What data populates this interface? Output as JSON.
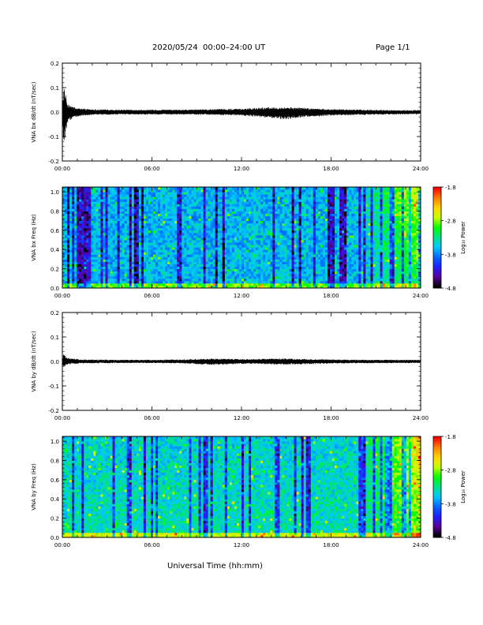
{
  "header": {
    "title": "2020/05/24  00:00–24:00 UT",
    "page": "Page 1/1"
  },
  "x_axis_title": "Universal Time (hh:mm)",
  "colorbar": {
    "label": "Log₁₀ Power",
    "ticks": [
      "-1.8",
      "-2.8",
      "-3.8",
      "-4.8"
    ],
    "range": [
      -4.8,
      -1.8
    ],
    "colormap": [
      "#000000",
      "#5a009c",
      "#1f20ff",
      "#0066ff",
      "#00c8ff",
      "#00e08a",
      "#00ff00",
      "#c8ff00",
      "#ffd700",
      "#ff8000",
      "#ff0000"
    ]
  },
  "chart_data": [
    {
      "type": "line",
      "name": "VNA bx waveform",
      "ylabel": "VNA bx dB/dt (nT/sec)",
      "ylim": [
        -0.2,
        0.2
      ],
      "yticks": [
        "0.2",
        "0.1",
        "0.0",
        "-0.1",
        "-0.2"
      ],
      "xticks": [
        "00:00",
        "06:00",
        "12:00",
        "18:00",
        "24:00"
      ],
      "xlim_hours": [
        0,
        24
      ],
      "envelope": {
        "x_hours": [
          0,
          0.1,
          0.2,
          0.3,
          0.4,
          0.6,
          0.8,
          1.0,
          1.3,
          2,
          4,
          6,
          8,
          10,
          12,
          13,
          14,
          15,
          16,
          18,
          20,
          22,
          24
        ],
        "y_min": [
          -0.02,
          -0.15,
          -0.09,
          -0.06,
          -0.04,
          -0.03,
          -0.02,
          -0.02,
          -0.015,
          -0.012,
          -0.01,
          -0.01,
          -0.01,
          -0.012,
          -0.014,
          -0.02,
          -0.025,
          -0.03,
          -0.022,
          -0.015,
          -0.012,
          -0.01,
          -0.01
        ],
        "y_max": [
          0.02,
          0.11,
          0.08,
          0.04,
          0.03,
          0.025,
          0.02,
          0.015,
          0.015,
          0.012,
          0.01,
          0.01,
          0.01,
          0.012,
          0.014,
          0.018,
          0.02,
          0.02,
          0.018,
          0.012,
          0.01,
          0.008,
          0.008
        ]
      }
    },
    {
      "type": "heatmap",
      "name": "VNA bx spectrogram",
      "ylabel": "VNA bx Freq (Hz)",
      "ylim": [
        0,
        1.05
      ],
      "yticks": [
        "1.0",
        "0.8",
        "0.6",
        "0.4",
        "0.2",
        "0.0"
      ],
      "xticks": [
        "00:00",
        "06:00",
        "12:00",
        "18:00",
        "24:00"
      ],
      "xlim_hours": [
        0,
        24
      ]
    },
    {
      "type": "line",
      "name": "VNA by waveform",
      "ylabel": "VNA by dB/dt (nT/sec)",
      "ylim": [
        -0.2,
        0.2
      ],
      "yticks": [
        "0.2",
        "0.1",
        "0.0",
        "-0.1",
        "-0.2"
      ],
      "xticks": [
        "00:00",
        "06:00",
        "12:00",
        "18:00",
        "24:00"
      ],
      "xlim_hours": [
        0,
        24
      ],
      "envelope": {
        "x_hours": [
          0,
          0.1,
          0.2,
          0.3,
          0.4,
          0.6,
          0.8,
          1.0,
          1.3,
          2,
          4,
          6,
          8,
          10,
          12,
          13,
          14,
          15,
          16,
          18,
          20,
          22,
          24
        ],
        "y_min": [
          -0.01,
          -0.03,
          -0.02,
          -0.015,
          -0.012,
          -0.01,
          -0.01,
          -0.01,
          -0.008,
          -0.008,
          -0.007,
          -0.007,
          -0.008,
          -0.015,
          -0.01,
          -0.01,
          -0.012,
          -0.014,
          -0.012,
          -0.009,
          -0.008,
          -0.007,
          -0.007
        ],
        "y_max": [
          0.01,
          0.04,
          0.025,
          0.018,
          0.015,
          0.012,
          0.012,
          0.01,
          0.008,
          0.008,
          0.007,
          0.007,
          0.008,
          0.012,
          0.01,
          0.01,
          0.012,
          0.012,
          0.01,
          0.008,
          0.007,
          0.007,
          0.007
        ]
      }
    },
    {
      "type": "heatmap",
      "name": "VNA by spectrogram",
      "ylabel": "VNA by Freq (Hz)",
      "ylim": [
        0,
        1.05
      ],
      "yticks": [
        "1.0",
        "0.8",
        "0.6",
        "0.4",
        "0.2",
        "0.0"
      ],
      "xticks": [
        "00:00",
        "06:00",
        "12:00",
        "18:00",
        "24:00"
      ],
      "xlim_hours": [
        0,
        24
      ]
    }
  ]
}
